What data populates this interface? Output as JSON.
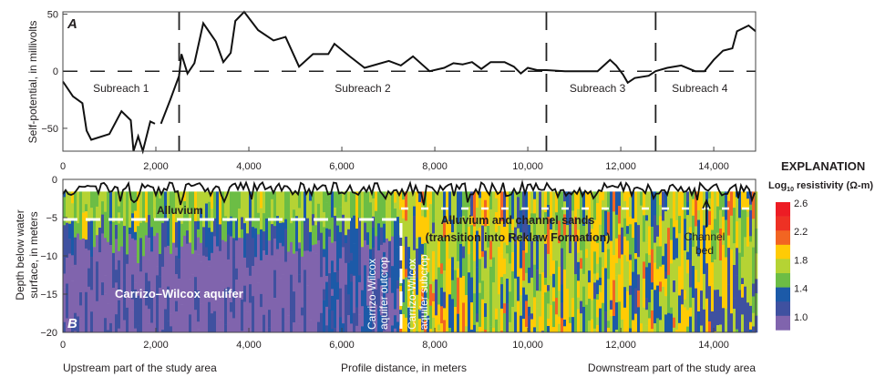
{
  "chart_data": [
    {
      "type": "line",
      "panel_label": "A",
      "ylabel": "Self-potential, in millivolts",
      "xlim": [
        0,
        14900
      ],
      "ylim": [
        -70,
        52
      ],
      "xticks": [
        "0",
        "2,000",
        "4,000",
        "6,000",
        "8,000",
        "10,000",
        "12,000",
        "14,000"
      ],
      "yticks": [
        "50",
        "0",
        "−50"
      ],
      "reference_line": 0,
      "subreach_boundaries": [
        2500,
        10400,
        12750
      ],
      "subreach_labels": [
        {
          "text": "Subreach 1",
          "x": 1250
        },
        {
          "text": "Subreach 2",
          "x": 6450
        },
        {
          "text": "Subreach 3",
          "x": 11500
        },
        {
          "text": "Subreach 4",
          "x": 13700
        }
      ],
      "series": [
        {
          "x": [
            0,
            215,
            420,
            510,
            610,
            1000,
            1260,
            1460,
            1520,
            1620,
            1720,
            1880,
            1980,
            2050,
            2110,
            2310,
            2500,
            2550,
            2680,
            2830,
            3020,
            3290,
            3450,
            3610,
            3710,
            3900,
            4200,
            4530,
            4790,
            5080,
            5380,
            5710,
            5840,
            6170,
            6490,
            7010,
            7270,
            7530,
            7890,
            8200,
            8400,
            8600,
            8800,
            9000,
            9200,
            9500,
            9700,
            9850,
            10000,
            10200,
            10400,
            10800,
            11100,
            11500,
            11770,
            11900,
            12050,
            12150,
            12300,
            12600,
            12750,
            13000,
            13300,
            13600,
            13800,
            14000,
            14200,
            14400,
            14500,
            14750,
            14900
          ],
          "y": [
            -9,
            -22,
            -28,
            -52,
            -60,
            -55,
            -35,
            -43,
            -70,
            -57,
            -70,
            -44,
            -46,
            null,
            -46,
            -25,
            -4,
            15,
            -2,
            7,
            42,
            26,
            8,
            16,
            44,
            52,
            36,
            27,
            30,
            4,
            15,
            15,
            24,
            13,
            3,
            9,
            5,
            13,
            0,
            3,
            7,
            6,
            8,
            2,
            8,
            8,
            4,
            -2,
            3,
            1,
            1,
            0,
            0,
            0,
            10,
            5,
            -3,
            -10,
            -6,
            -4,
            0,
            3,
            5,
            0,
            0,
            10,
            18,
            20,
            35,
            40,
            35
          ]
        }
      ]
    },
    {
      "type": "heatmap",
      "panel_label": "B",
      "ylabel": "Depth below water surface, in meters",
      "xlabel": "Profile distance, in meters",
      "xlim": [
        0,
        14900
      ],
      "ylim": [
        -20,
        0
      ],
      "xticks": [
        "0",
        "2,000",
        "4,000",
        "6,000",
        "8,000",
        "10,000",
        "12,000",
        "14,000"
      ],
      "yticks": [
        "0",
        "−5",
        "−10",
        "−15",
        "−20"
      ],
      "x_note_left": "Upstream part of the study area",
      "x_note_right": "Downstream part of the study area",
      "annotations": {
        "alluvium": "Alluvium",
        "carrizo_wilcox": "Carrizo–Wilcox aquifer",
        "outcrop_1": "Carrizo-Wilcox",
        "outcrop_2": "aquifer outcrop",
        "subcrop_1": "Carrizo-Wilcox",
        "subcrop_2": "aquifer subcrop",
        "channel_sands_1": "Alluvium and channel sands",
        "channel_sands_2": "(transition into Reklaw Formation)",
        "channel_bed_1": "Channel",
        "channel_bed_2": "bed"
      },
      "legend": {
        "title": "EXPLANATION",
        "subtitle_pre": "Log",
        "subtitle_sub": "10",
        "subtitle_post": " resistivity (Ω-m)",
        "tick_labels": [
          "2.6",
          "2.2",
          "1.8",
          "1.4",
          "1.0"
        ],
        "colors": [
          "#ed1c24",
          "#ee3124",
          "#f26522",
          "#ffcb05",
          "#b5d334",
          "#6cbd45",
          "#1c5aa8",
          "#3f51a0",
          "#8064ad"
        ]
      }
    }
  ]
}
